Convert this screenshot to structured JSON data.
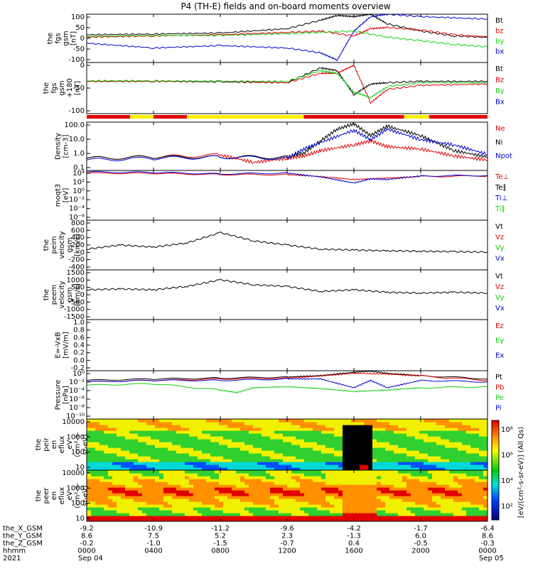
{
  "title": "P4 (TH-E) fields and on-board moments overview",
  "colors": {
    "black": "#000000",
    "red": "#e00000",
    "green": "#10d010",
    "blue": "#0000d0"
  },
  "chart_data": [
    {
      "type": "line",
      "panel": "fgs_gsm",
      "ylabel": [
        "the",
        "fgs",
        "gsm",
        "[nT]"
      ],
      "ylim": [
        -100,
        100
      ],
      "yticks": [
        "100",
        "50",
        "0",
        "-50",
        "-100"
      ],
      "legend": [
        {
          "text": "Bt",
          "color": "black"
        },
        {
          "text": "bz",
          "color": "red"
        },
        {
          "text": "by",
          "color": "green"
        },
        {
          "text": "bx",
          "color": "blue"
        }
      ],
      "series": [
        {
          "name": "Bt",
          "color": "black",
          "x": [
            0,
            4,
            8,
            12,
            14,
            15,
            16,
            17,
            18,
            20,
            22,
            24
          ],
          "values": [
            15,
            18,
            22,
            40,
            75,
            95,
            90,
            100,
            60,
            30,
            10,
            5
          ]
        },
        {
          "name": "bz",
          "color": "red",
          "x": [
            0,
            4,
            8,
            12,
            14,
            16,
            17,
            18,
            20,
            22,
            24
          ],
          "values": [
            5,
            10,
            15,
            25,
            30,
            10,
            40,
            45,
            35,
            15,
            5
          ]
        },
        {
          "name": "by",
          "color": "green",
          "x": [
            0,
            4,
            8,
            12,
            14,
            16,
            18,
            20,
            22,
            24
          ],
          "values": [
            8,
            12,
            12,
            20,
            25,
            30,
            5,
            -10,
            -25,
            -35
          ]
        },
        {
          "name": "bx",
          "color": "blue",
          "x": [
            0,
            4,
            8,
            12,
            14,
            15,
            16,
            17,
            18,
            20,
            24
          ],
          "values": [
            -20,
            -40,
            -30,
            -40,
            -60,
            -90,
            30,
            90,
            100,
            90,
            80
          ]
        }
      ]
    },
    {
      "type": "line",
      "panel": "fgs_gse",
      "ylabel": [
        "the",
        "fgs",
        "gsm",
        "+180",
        "[nT]"
      ],
      "ylim": [
        -120,
        70
      ],
      "yticks": [
        "0",
        "-50",
        "-100"
      ],
      "legend": [
        {
          "text": "Bt",
          "color": "black"
        },
        {
          "text": "Bz",
          "color": "red"
        },
        {
          "text": "By",
          "color": "green"
        },
        {
          "text": "Bx",
          "color": "blue"
        }
      ],
      "series": [
        {
          "name": "Bt",
          "color": "black",
          "x": [
            0,
            4,
            8,
            12,
            14,
            15,
            16,
            17,
            18,
            20,
            24
          ],
          "values": [
            0,
            0,
            -2,
            -5,
            50,
            40,
            -50,
            -10,
            -5,
            0,
            0
          ]
        },
        {
          "name": "Bz",
          "color": "red",
          "x": [
            0,
            4,
            8,
            12,
            14,
            15,
            16,
            17,
            18,
            20,
            24
          ],
          "values": [
            0,
            0,
            0,
            -5,
            30,
            30,
            60,
            -80,
            -30,
            -15,
            -10
          ]
        },
        {
          "name": "By",
          "color": "green",
          "x": [
            0,
            4,
            8,
            12,
            14,
            15,
            16,
            17,
            18,
            20,
            24
          ],
          "values": [
            2,
            2,
            0,
            0,
            40,
            30,
            -40,
            -60,
            -20,
            -5,
            -5
          ]
        }
      ]
    },
    {
      "type": "line",
      "panel": "density",
      "ylabel": [
        "Density",
        "[cm-3]"
      ],
      "yscale": "log",
      "ylim": [
        0.05,
        200
      ],
      "yticks": [
        "100.0",
        "10.0",
        "1.0",
        "0.1"
      ],
      "legend": [
        {
          "text": "Ne",
          "color": "red"
        },
        {
          "text": "Ni",
          "color": "black"
        },
        {
          "text": "Npot",
          "color": "blue"
        }
      ],
      "series": [
        {
          "name": "Ne",
          "color": "red",
          "x": [
            0,
            4,
            8,
            10,
            12,
            13,
            14,
            16,
            17,
            18,
            20,
            22,
            24
          ],
          "values": [
            0.4,
            0.5,
            0.7,
            0.2,
            0.4,
            0.6,
            1.5,
            4,
            8,
            3,
            2,
            0.6,
            0.3
          ]
        },
        {
          "name": "Ni",
          "color": "black",
          "x": [
            0,
            4,
            8,
            12,
            13,
            14,
            15,
            16,
            17,
            18,
            20,
            22,
            24
          ],
          "values": [
            0.4,
            0.5,
            0.5,
            0.5,
            1,
            8,
            60,
            150,
            20,
            100,
            20,
            1.5,
            0.5
          ]
        },
        {
          "name": "Npot",
          "color": "blue",
          "x": [
            0,
            4,
            8,
            12,
            13,
            14,
            16,
            17,
            18,
            20,
            22,
            24
          ],
          "values": [
            0.3,
            0.4,
            0.5,
            0.4,
            2,
            6,
            50,
            10,
            60,
            10,
            4,
            0.8
          ]
        }
      ]
    },
    {
      "type": "line",
      "panel": "temperature",
      "ylabel": [
        "moqt3",
        "[eV]"
      ],
      "yscale": "log",
      "ylim": [
        1e-06,
        10000
      ],
      "yticks": [
        "10⁴",
        "10²",
        "10⁰",
        "10⁻²",
        "10⁻⁴",
        "10⁻⁶"
      ],
      "legend": [
        {
          "text": "Te⊥",
          "color": "red"
        },
        {
          "text": "Te∥",
          "color": "black"
        },
        {
          "text": "Ti⊥",
          "color": "blue"
        },
        {
          "text": "Ti∥",
          "color": "green"
        }
      ],
      "series": [
        {
          "name": "Te⊥",
          "color": "red",
          "x": [
            0,
            4,
            8,
            12,
            14,
            16,
            18,
            20,
            24
          ],
          "values": [
            3000,
            2500,
            1500,
            1500,
            600,
            150,
            300,
            600,
            800
          ]
        },
        {
          "name": "Ti⊥",
          "color": "blue",
          "x": [
            0,
            4,
            8,
            12,
            14,
            16,
            17,
            18,
            20,
            24
          ],
          "values": [
            5000,
            4000,
            2000,
            3000,
            500,
            30,
            200,
            150,
            800,
            1000
          ]
        }
      ]
    },
    {
      "type": "line",
      "panel": "peim_velocity",
      "ylabel": [
        "the",
        "peim",
        "velocity",
        "gsm",
        "[km/s]"
      ],
      "ylim": [
        -400,
        800
      ],
      "yticks": [
        "800",
        "600",
        "400",
        "200",
        "0",
        "-200",
        "-400"
      ],
      "legend": [
        {
          "text": "Vt",
          "color": "black"
        },
        {
          "text": "Vz",
          "color": "red"
        },
        {
          "text": "Vy",
          "color": "green"
        },
        {
          "text": "Vx",
          "color": "blue"
        }
      ],
      "series": [
        {
          "name": "Vt",
          "color": "black",
          "x": [
            0,
            2,
            4,
            6,
            8,
            10,
            12,
            14,
            16,
            18,
            20,
            22,
            24
          ],
          "values": [
            100,
            200,
            150,
            250,
            500,
            300,
            200,
            100,
            80,
            60,
            50,
            40,
            30
          ]
        }
      ]
    },
    {
      "type": "line",
      "panel": "peem_velocity",
      "ylabel": [
        "the",
        "peem",
        "velocity",
        "gsm",
        "[km/s]"
      ],
      "ylim": [
        -1500,
        1500
      ],
      "yticks": [
        "1500",
        "1000",
        "500",
        "0",
        "-500",
        "-1000",
        "-1500"
      ],
      "legend": [
        {
          "text": "Vt",
          "color": "black"
        },
        {
          "text": "Vz",
          "color": "red"
        },
        {
          "text": "Vy",
          "color": "green"
        },
        {
          "text": "Vx",
          "color": "blue"
        }
      ],
      "series": [
        {
          "name": "Vt",
          "color": "black",
          "x": [
            0,
            2,
            4,
            6,
            8,
            10,
            12,
            14,
            16,
            18,
            20,
            22,
            24
          ],
          "values": [
            300,
            350,
            300,
            500,
            900,
            600,
            500,
            200,
            300,
            150,
            100,
            150,
            100
          ]
        }
      ]
    },
    {
      "type": "line",
      "panel": "efield",
      "ylabel": [
        "E=-VxB",
        "[mV/m]"
      ],
      "ylim": [
        -0.2,
        1.0
      ],
      "yticks": [
        "1.0",
        "0.8",
        "0.6",
        "0.4",
        "0.2",
        "0.0",
        "-0.2"
      ],
      "legend": [
        {
          "text": "Ez",
          "color": "red"
        },
        {
          "text": "Ey",
          "color": "green"
        },
        {
          "text": "Ex",
          "color": "blue"
        }
      ],
      "series": []
    },
    {
      "type": "line",
      "panel": "pressure",
      "ylabel": [
        "Pressure",
        "[nPa]"
      ],
      "yscale": "log",
      "ylim": [
        1e-10,
        1
      ],
      "yticks": [
        "10⁰",
        "10⁻²",
        "10⁻⁴",
        "10⁻⁶",
        "10⁻⁸",
        "10⁻¹⁰"
      ],
      "legend": [
        {
          "text": "Pt",
          "color": "black"
        },
        {
          "text": "Pb",
          "color": "red"
        },
        {
          "text": "Pe",
          "color": "green"
        },
        {
          "text": "Pi",
          "color": "blue"
        }
      ],
      "series": [
        {
          "name": "Pt",
          "color": "black",
          "x": [
            0,
            4,
            8,
            12,
            14,
            16,
            17,
            18,
            20,
            24
          ],
          "values": [
            0.01,
            0.02,
            0.03,
            0.05,
            0.1,
            0.5,
            0.8,
            0.3,
            0.1,
            0.02
          ]
        },
        {
          "name": "Pb",
          "color": "red",
          "x": [
            0,
            4,
            8,
            12,
            14,
            16,
            18,
            20,
            24
          ],
          "values": [
            0.005,
            0.01,
            0.02,
            0.03,
            0.08,
            0.3,
            0.2,
            0.08,
            0.01
          ]
        },
        {
          "name": "Pi",
          "color": "blue",
          "x": [
            0,
            4,
            8,
            12,
            14,
            16,
            17,
            18,
            20,
            24
          ],
          "values": [
            0.005,
            0.01,
            0.01,
            0.02,
            0.02,
            0.0003,
            0.01,
            0.0003,
            0.01,
            0.005
          ]
        },
        {
          "name": "Pe",
          "color": "green",
          "x": [
            0,
            4,
            8,
            9,
            10,
            12,
            14,
            16,
            18,
            20,
            24
          ],
          "values": [
            0.001,
            0.002,
            0.0001,
            3e-05,
            0.0003,
            0.0005,
            0.0002,
            5e-05,
            0.0001,
            0.0003,
            0.0005
          ]
        }
      ]
    },
    {
      "type": "heatmap",
      "panel": "peir_spectrogram",
      "ylabel": [
        "the",
        "peir",
        "en",
        "eflux",
        "eV",
        "(cm²-s-",
        "sr-eV)"
      ],
      "yscale": "log",
      "ylim": [
        7,
        25000
      ],
      "yticks": [
        "10000",
        "1000",
        "100",
        "10"
      ]
    },
    {
      "type": "heatmap",
      "panel": "peer_spectrogram",
      "ylabel": [
        "the",
        "peer",
        "en",
        "eflux",
        "eV",
        "(cm²-s-",
        "sr-eV)"
      ],
      "yscale": "log",
      "ylim": [
        7,
        25000
      ],
      "yticks": [
        "10000",
        "1000",
        "100",
        "10"
      ]
    }
  ],
  "mode_bar": [
    {
      "from": 0,
      "to": 2.6,
      "color": "red"
    },
    {
      "from": 2.6,
      "to": 4.0,
      "color": "yellow"
    },
    {
      "from": 4.0,
      "to": 6.0,
      "color": "red"
    },
    {
      "from": 6.0,
      "to": 13.0,
      "color": "yellow"
    },
    {
      "from": 13.0,
      "to": 19.0,
      "color": "red"
    },
    {
      "from": 19.0,
      "to": 20.5,
      "color": "yellow"
    },
    {
      "from": 20.5,
      "to": 24,
      "color": "red"
    }
  ],
  "colorbar": {
    "label": "[eV/(cm²-s-sr-eV)] (All Qs)",
    "ticks": [
      "10⁸",
      "10⁶",
      "10⁴",
      "10²"
    ]
  },
  "footer": {
    "rows": [
      {
        "label": "the_X_GSM",
        "values": [
          "-9.2",
          "-10.9",
          "-11.2",
          "-9.6",
          "-4.2",
          "-1.7",
          "-6.4"
        ]
      },
      {
        "label": "the_Y_GSM",
        "values": [
          "8.6",
          "7.5",
          "5.2",
          "2.3",
          "-1.3",
          "6.0",
          "8.6"
        ]
      },
      {
        "label": "the_Z_GSM",
        "values": [
          "-0.2",
          "-1.0",
          "-1.5",
          "-0.7",
          "0.4",
          "-0.5",
          "-0.3"
        ]
      },
      {
        "label": "hhmm",
        "values": [
          "0000",
          "0400",
          "0800",
          "1200",
          "1600",
          "2000",
          "0000"
        ]
      },
      {
        "label": "2021",
        "values": [
          "Sep 04",
          "",
          "",
          "",
          "",
          "",
          "Sep 05"
        ]
      }
    ]
  }
}
